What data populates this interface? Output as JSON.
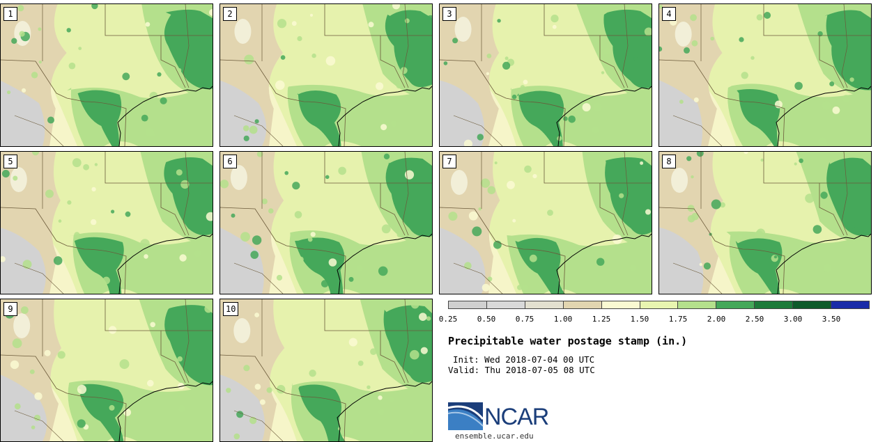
{
  "panels": [
    {
      "label": "1"
    },
    {
      "label": "2"
    },
    {
      "label": "3"
    },
    {
      "label": "4"
    },
    {
      "label": "5"
    },
    {
      "label": "6"
    },
    {
      "label": "7"
    },
    {
      "label": "8"
    },
    {
      "label": "9"
    },
    {
      "label": "10"
    }
  ],
  "colorbar": {
    "colors": [
      "#d0d0d0",
      "#d9d9d9",
      "#e3e0d0",
      "#e2d5b0",
      "#fafad2",
      "#e8f5b0",
      "#b4e08c",
      "#45a85a",
      "#1d7a3a",
      "#0e5a2a",
      "#1a2ca8"
    ],
    "ticks": [
      "0.25",
      "0.50",
      "0.75",
      "1.00",
      "1.25",
      "1.50",
      "1.75",
      "2.00",
      "2.50",
      "3.00",
      "3.50"
    ]
  },
  "title": "Precipitable water postage stamp (in.)",
  "init": "Init: Wed 2018-07-04 00 UTC",
  "valid": "Valid: Thu 2018-07-05 08 UTC",
  "logo_text": "NCAR",
  "url": "ensemble.ucar.edu"
}
